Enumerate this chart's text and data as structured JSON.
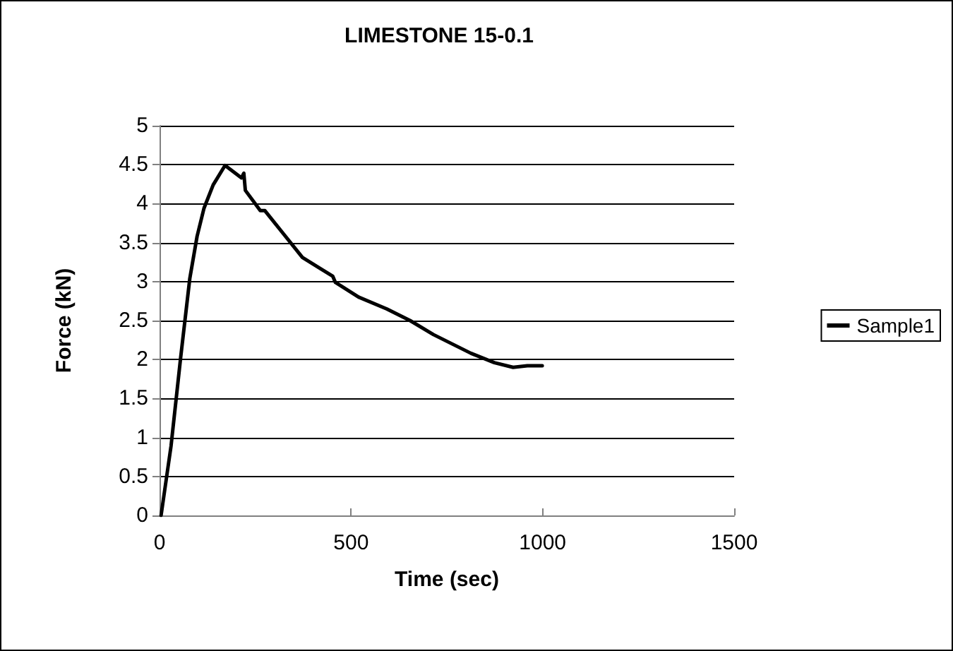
{
  "chart_data": {
    "type": "line",
    "title": "LIMESTONE 15-0.1",
    "xlabel": "Time (sec)",
    "ylabel": "Force (kN)",
    "xlim": [
      0,
      1500
    ],
    "xticks": [
      0,
      500,
      1000,
      1500
    ],
    "ylim": [
      0,
      5
    ],
    "yticks": [
      0,
      0.5,
      1,
      1.5,
      2,
      2.5,
      3,
      3.5,
      4,
      4.5,
      5
    ],
    "grid": "y",
    "legend": "right",
    "marker": "none",
    "line_style": "solid",
    "series": [
      {
        "name": "Sample1",
        "color": "#000000",
        "x": [
          4,
          30,
          55,
          79,
          98,
          116,
          140,
          171,
          214,
          220,
          224,
          263,
          275,
          324,
          373,
          422,
          452,
          459,
          520,
          593,
          654,
          715,
          764,
          813,
          874,
          923,
          960,
          999
        ],
        "values": [
          0,
          0.89,
          2.02,
          3.04,
          3.58,
          3.94,
          4.24,
          4.49,
          4.33,
          4.39,
          4.17,
          3.91,
          3.91,
          3.61,
          3.31,
          3.16,
          3.07,
          2.99,
          2.8,
          2.65,
          2.5,
          2.32,
          2.2,
          2.08,
          1.96,
          1.9,
          1.92,
          1.92
        ]
      }
    ]
  }
}
